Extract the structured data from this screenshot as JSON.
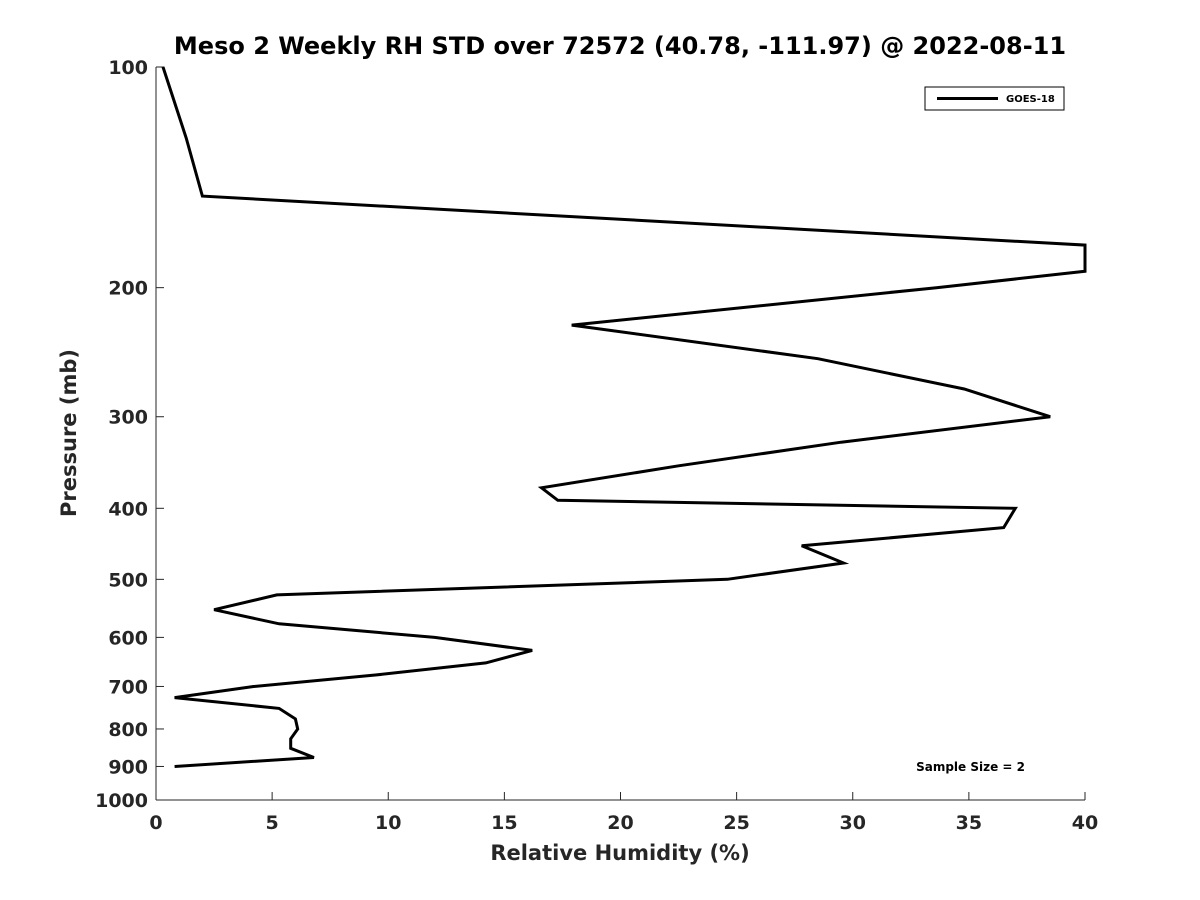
{
  "chart_data": {
    "type": "line",
    "title": "Meso 2 Weekly RH STD over 72572 (40.78, -111.97) @ 2022-08-11",
    "xlabel": "Relative Humidity (%)",
    "ylabel": "Pressure (mb)",
    "xlim": [
      0,
      40
    ],
    "ylim": [
      100,
      1000
    ],
    "y_scale": "log",
    "y_reversed": true,
    "x_ticks": [
      0,
      5,
      10,
      15,
      20,
      25,
      30,
      35,
      40
    ],
    "y_ticks": [
      100,
      200,
      300,
      400,
      500,
      600,
      700,
      800,
      900,
      1000
    ],
    "grid": false,
    "legend_position": "top-right",
    "colors": {
      "line": "#000000",
      "axis": "#262626"
    },
    "series": [
      {
        "name": "GOES-18",
        "points": [
          {
            "rh": 0.3,
            "p": 100
          },
          {
            "rh": 1.3,
            "p": 125
          },
          {
            "rh": 2.0,
            "p": 150
          },
          {
            "rh": 40.0,
            "p": 175
          },
          {
            "rh": 40.0,
            "p": 190
          },
          {
            "rh": 33.6,
            "p": 200
          },
          {
            "rh": 17.9,
            "p": 225
          },
          {
            "rh": 28.5,
            "p": 250
          },
          {
            "rh": 34.8,
            "p": 275
          },
          {
            "rh": 38.5,
            "p": 300
          },
          {
            "rh": 29.5,
            "p": 325
          },
          {
            "rh": 22.5,
            "p": 350
          },
          {
            "rh": 16.6,
            "p": 375
          },
          {
            "rh": 17.3,
            "p": 390
          },
          {
            "rh": 37.0,
            "p": 400
          },
          {
            "rh": 36.5,
            "p": 425
          },
          {
            "rh": 27.8,
            "p": 450
          },
          {
            "rh": 29.6,
            "p": 475
          },
          {
            "rh": 24.6,
            "p": 500
          },
          {
            "rh": 5.2,
            "p": 525
          },
          {
            "rh": 2.5,
            "p": 550
          },
          {
            "rh": 5.3,
            "p": 575
          },
          {
            "rh": 12.0,
            "p": 600
          },
          {
            "rh": 16.2,
            "p": 625
          },
          {
            "rh": 14.2,
            "p": 650
          },
          {
            "rh": 9.5,
            "p": 675
          },
          {
            "rh": 4.2,
            "p": 700
          },
          {
            "rh": 0.8,
            "p": 725
          },
          {
            "rh": 5.3,
            "p": 750
          },
          {
            "rh": 6.0,
            "p": 775
          },
          {
            "rh": 6.1,
            "p": 800
          },
          {
            "rh": 5.8,
            "p": 825
          },
          {
            "rh": 5.8,
            "p": 850
          },
          {
            "rh": 6.8,
            "p": 875
          },
          {
            "rh": 0.8,
            "p": 900
          }
        ]
      }
    ],
    "annotations": [
      {
        "text": "Sample Size = 2",
        "position": "bottom-right"
      }
    ]
  }
}
